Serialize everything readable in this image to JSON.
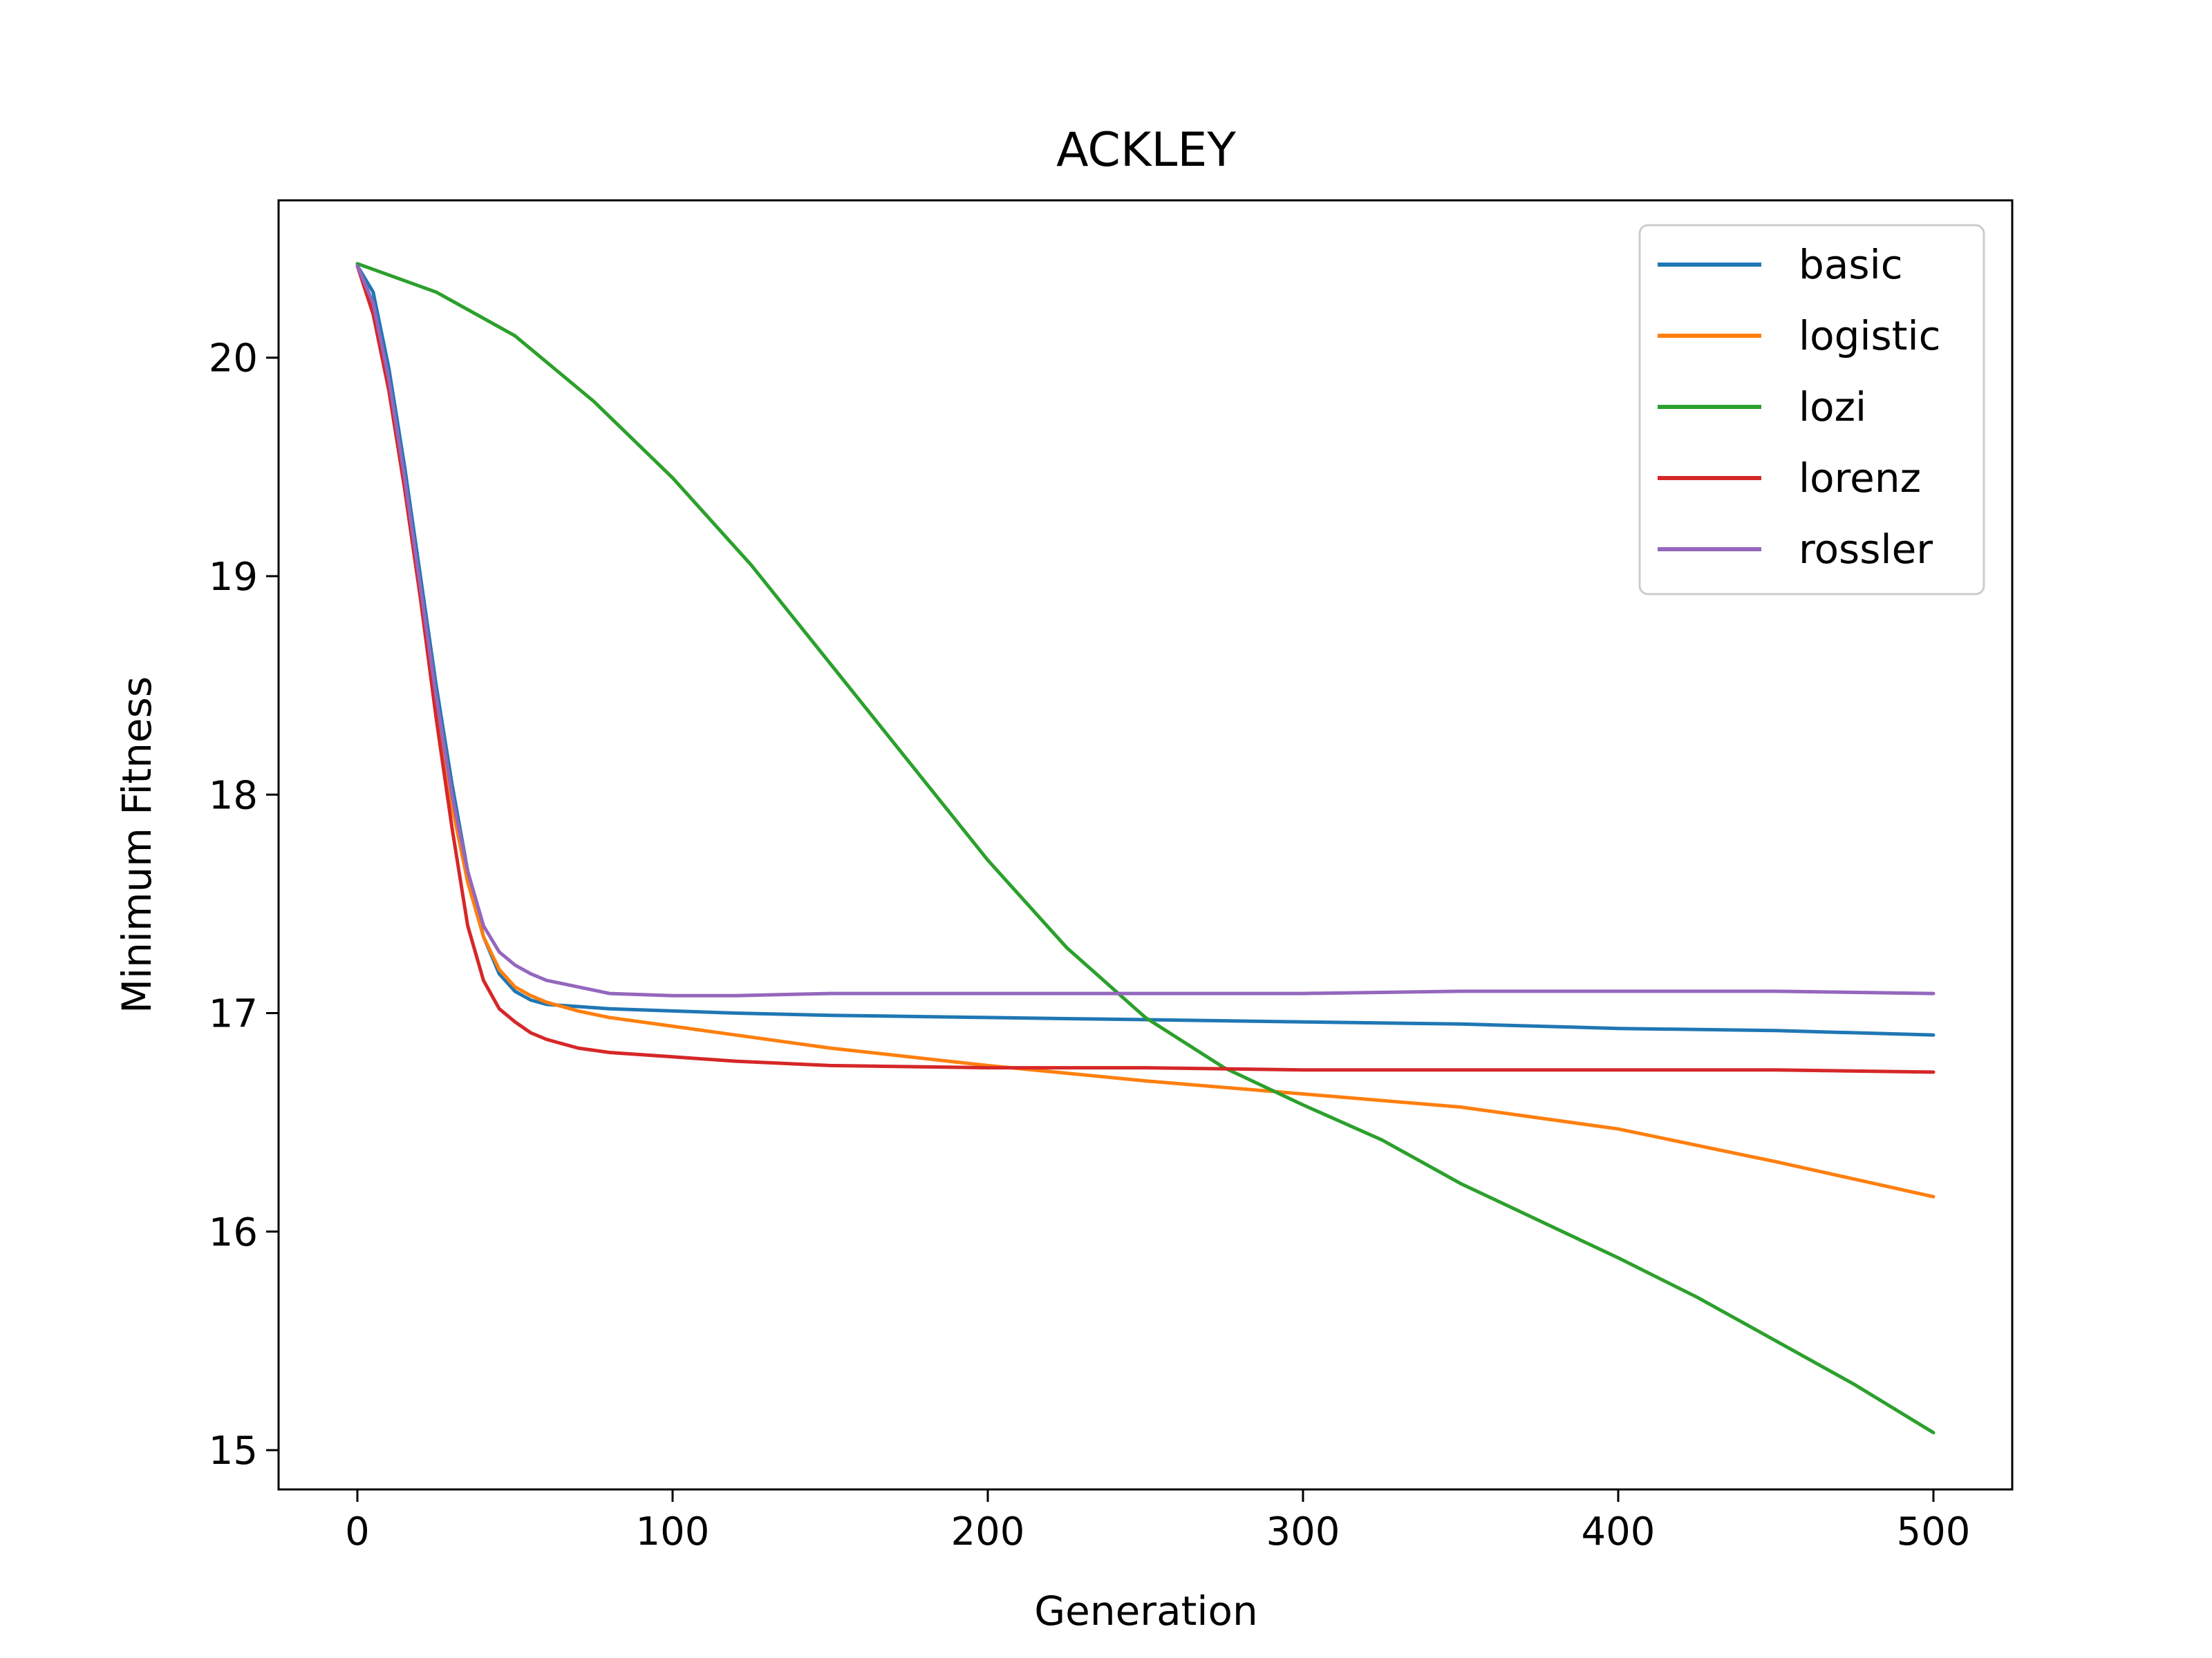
{
  "chart_data": {
    "type": "line",
    "title": "ACKLEY",
    "xlabel": "Generation",
    "ylabel": "Minimum Fitness",
    "xlim": [
      -25,
      525
    ],
    "ylim": [
      14.82,
      20.72
    ],
    "xticks": [
      0,
      100,
      200,
      300,
      400,
      500
    ],
    "yticks": [
      15,
      16,
      17,
      18,
      19,
      20
    ],
    "grid": false,
    "legend_position": "top-right",
    "series": [
      {
        "name": "basic",
        "color": "#1f77b4",
        "x": [
          0,
          5,
          10,
          15,
          20,
          25,
          30,
          35,
          40,
          45,
          50,
          55,
          60,
          70,
          80,
          100,
          120,
          150,
          200,
          250,
          300,
          350,
          400,
          450,
          500
        ],
        "y": [
          20.42,
          20.3,
          19.95,
          19.5,
          19.0,
          18.5,
          18.05,
          17.65,
          17.35,
          17.18,
          17.1,
          17.06,
          17.04,
          17.03,
          17.02,
          17.01,
          17.0,
          16.99,
          16.98,
          16.97,
          16.96,
          16.95,
          16.93,
          16.92,
          16.9
        ]
      },
      {
        "name": "logistic",
        "color": "#ff7f0e",
        "x": [
          0,
          5,
          10,
          15,
          20,
          25,
          30,
          35,
          40,
          45,
          50,
          55,
          60,
          70,
          80,
          100,
          120,
          150,
          200,
          250,
          300,
          350,
          400,
          450,
          500
        ],
        "y": [
          20.42,
          20.2,
          19.85,
          19.4,
          18.9,
          18.4,
          17.95,
          17.6,
          17.35,
          17.2,
          17.12,
          17.08,
          17.05,
          17.01,
          16.98,
          16.94,
          16.9,
          16.84,
          16.76,
          16.69,
          16.63,
          16.57,
          16.47,
          16.32,
          16.16
        ]
      },
      {
        "name": "lozi",
        "color": "#2ca02c",
        "x": [
          0,
          25,
          50,
          75,
          100,
          125,
          150,
          175,
          200,
          225,
          250,
          275,
          300,
          325,
          350,
          375,
          400,
          425,
          450,
          475,
          500
        ],
        "y": [
          20.43,
          20.3,
          20.1,
          19.8,
          19.45,
          19.05,
          18.6,
          18.15,
          17.7,
          17.3,
          16.98,
          16.75,
          16.58,
          16.42,
          16.22,
          16.05,
          15.88,
          15.7,
          15.5,
          15.3,
          15.08
        ]
      },
      {
        "name": "lorenz",
        "color": "#d62728",
        "x": [
          0,
          5,
          10,
          15,
          20,
          25,
          30,
          35,
          40,
          45,
          50,
          55,
          60,
          70,
          80,
          100,
          120,
          150,
          200,
          250,
          300,
          350,
          400,
          450,
          500
        ],
        "y": [
          20.42,
          20.2,
          19.85,
          19.4,
          18.9,
          18.35,
          17.85,
          17.4,
          17.15,
          17.02,
          16.96,
          16.91,
          16.88,
          16.84,
          16.82,
          16.8,
          16.78,
          16.76,
          16.75,
          16.75,
          16.74,
          16.74,
          16.74,
          16.74,
          16.73
        ]
      },
      {
        "name": "rossler",
        "color": "#9467bd",
        "x": [
          0,
          5,
          10,
          15,
          20,
          25,
          30,
          35,
          40,
          45,
          50,
          55,
          60,
          70,
          80,
          100,
          120,
          150,
          200,
          250,
          300,
          350,
          400,
          450,
          500
        ],
        "y": [
          20.42,
          20.25,
          19.9,
          19.45,
          18.95,
          18.45,
          18.0,
          17.65,
          17.4,
          17.28,
          17.22,
          17.18,
          17.15,
          17.12,
          17.09,
          17.08,
          17.08,
          17.09,
          17.09,
          17.09,
          17.09,
          17.1,
          17.1,
          17.1,
          17.09
        ]
      }
    ]
  }
}
